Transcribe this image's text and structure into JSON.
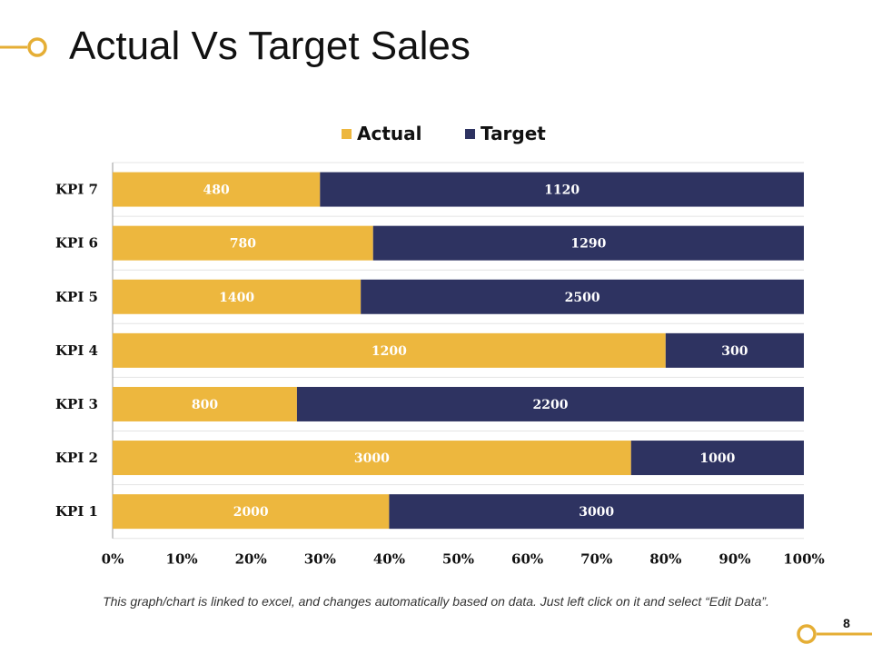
{
  "slide": {
    "title": "Actual Vs Target Sales",
    "caption": "This graph/chart is linked to excel, and changes automatically based on data. Just left click on it and select “Edit Data”.",
    "page_number": "8"
  },
  "colors": {
    "actual": "#EDB73E",
    "target": "#2E3361",
    "accent": "#E5AE35"
  },
  "chart_data": {
    "type": "bar",
    "orientation": "horizontal",
    "stacking": "percent",
    "title": "",
    "categories": [
      "KPI 1",
      "KPI 2",
      "KPI 3",
      "KPI 4",
      "KPI 5",
      "KPI 6",
      "KPI 7"
    ],
    "series": [
      {
        "name": "Actual",
        "values": [
          2000,
          3000,
          800,
          1200,
          1400,
          780,
          480
        ]
      },
      {
        "name": "Target",
        "values": [
          3000,
          1000,
          2200,
          300,
          2500,
          1290,
          1120
        ]
      }
    ],
    "x_ticks": [
      "0%",
      "10%",
      "20%",
      "30%",
      "40%",
      "50%",
      "60%",
      "70%",
      "80%",
      "90%",
      "100%"
    ],
    "xlim": [
      0,
      100
    ],
    "xlabel": "",
    "ylabel": "",
    "legend": "top",
    "grid": true
  }
}
